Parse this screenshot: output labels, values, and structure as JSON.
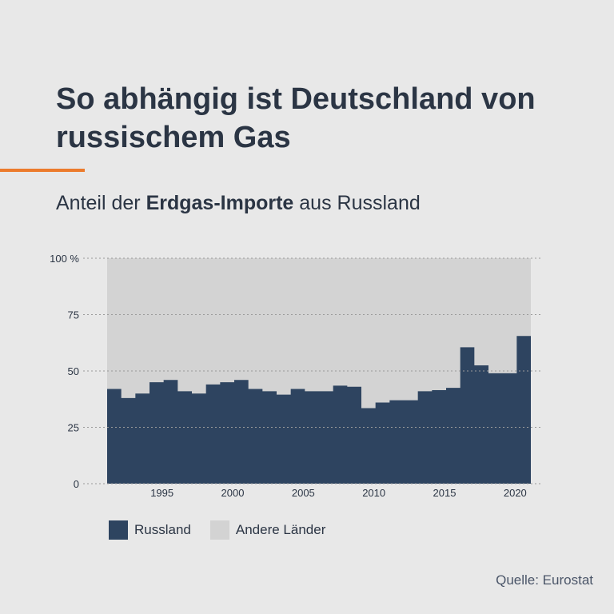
{
  "header": {
    "title": "So abhängig ist Deutschland von russischem Gas",
    "subtitle_pre": "Anteil der ",
    "subtitle_bold": "Erdgas-Importe",
    "subtitle_post": " aus Russland"
  },
  "source": "Quelle: Eurostat",
  "colors": {
    "russland": "#2e4460",
    "andere": "#d3d3d3",
    "accent": "#ec7b2c",
    "grid": "#9a9a9a"
  },
  "chart_data": {
    "type": "area",
    "x": [
      1991,
      1992,
      1993,
      1994,
      1995,
      1996,
      1997,
      1998,
      1999,
      2000,
      2001,
      2002,
      2003,
      2004,
      2005,
      2006,
      2007,
      2008,
      2009,
      2010,
      2011,
      2012,
      2013,
      2014,
      2015,
      2016,
      2017,
      2018,
      2019,
      2020
    ],
    "series": [
      {
        "name": "Russland",
        "values": [
          42,
          38,
          40,
          45,
          46,
          41,
          40,
          44,
          45,
          46,
          42,
          41,
          39.5,
          42,
          41,
          41,
          43.5,
          43,
          33.5,
          36,
          37,
          37,
          41,
          41.5,
          42.5,
          60.5,
          52.5,
          49,
          49,
          65.5
        ]
      },
      {
        "name": "Andere Länder",
        "values": [
          58,
          62,
          60,
          55,
          54,
          59,
          60,
          56,
          55,
          54,
          58,
          59,
          60.5,
          58,
          59,
          59,
          56.5,
          57,
          66.5,
          64,
          63,
          63,
          59,
          58.5,
          57.5,
          39.5,
          47.5,
          51,
          51,
          34.5
        ]
      }
    ],
    "stacked": true,
    "y_ticks": [
      "0",
      "25",
      "50",
      "75",
      "100 %"
    ],
    "y_tick_values": [
      0,
      25,
      50,
      75,
      100
    ],
    "x_ticks": [
      "1995",
      "2000",
      "2005",
      "2010",
      "2015",
      "2020"
    ],
    "x_tick_values": [
      1995,
      2000,
      2005,
      2010,
      2015,
      2020
    ],
    "ylim": [
      0,
      100
    ],
    "grid": true,
    "legend": "bottom-left",
    "legend_items": [
      "Russland",
      "Andere Länder"
    ]
  }
}
